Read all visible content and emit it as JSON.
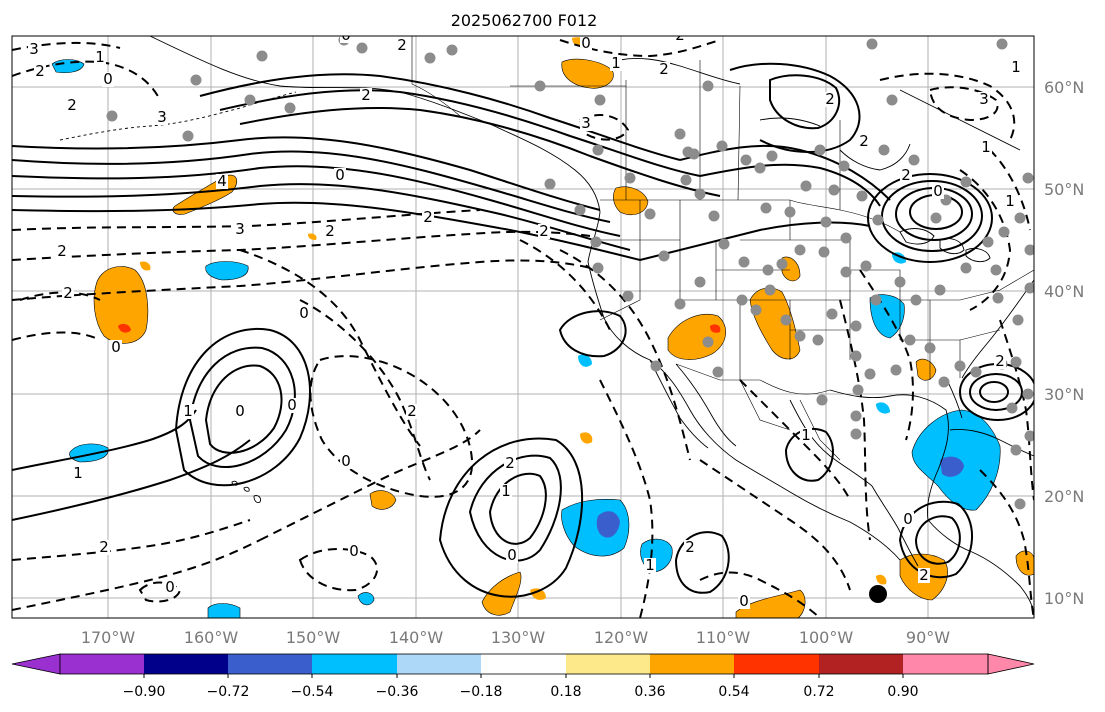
{
  "title": "2025062700 F012",
  "lon_ticks": [
    "170°W",
    "160°W",
    "150°W",
    "140°W",
    "130°W",
    "120°W",
    "110°W",
    "100°W",
    "90°W"
  ],
  "lat_ticks": [
    "60°N",
    "50°N",
    "40°N",
    "30°N",
    "20°N",
    "10°N"
  ],
  "colorbar": {
    "tick_labels": [
      "−0.90",
      "−0.72",
      "−0.54",
      "−0.36",
      "−0.18",
      "0.18",
      "0.36",
      "0.54",
      "0.72",
      "0.90"
    ],
    "colors": [
      "#9b30d0",
      "#00008b",
      "#3a5fcd",
      "#00bfff",
      "#add8f7",
      "#ffffff",
      "#fde98a",
      "#ffa500",
      "#ff3300",
      "#b22222",
      "#ff88aa"
    ]
  },
  "contour_labels": [
    "3",
    "2",
    "1",
    "0",
    "2",
    "3",
    "0",
    "2",
    "2",
    "0",
    "0",
    "2",
    "2",
    "3",
    "0",
    "1",
    "2",
    "2",
    "2",
    "3",
    "1",
    "2",
    "2",
    "0",
    "1",
    "1",
    "2",
    "2",
    "0",
    "1",
    "0",
    "0",
    "0",
    "2",
    "1",
    "2",
    "0",
    "2",
    "1",
    "0",
    "4",
    "3",
    "2",
    "0",
    "0",
    "2",
    "1",
    "1",
    "2",
    "0",
    "2"
  ],
  "colors": {
    "land_fill": "#ffffff",
    "grid": "#b0b0b0",
    "station_dot": "#8c8c8c",
    "contour": "#000000"
  }
}
